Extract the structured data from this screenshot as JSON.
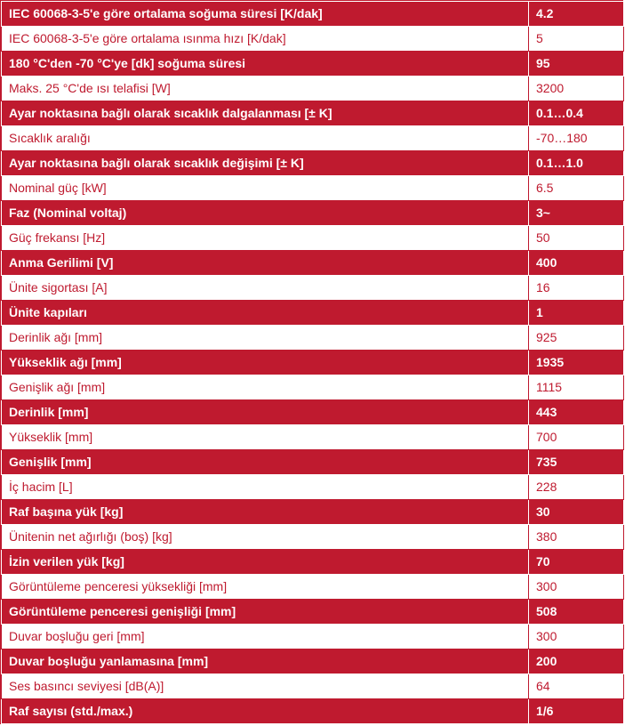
{
  "colors": {
    "accent": "#bf1a2f",
    "background": "#ffffff",
    "dark_row_text": "#ffffff",
    "light_row_text": "#bf1a2f"
  },
  "rows": [
    {
      "label": "IEC 60068-3-5'e göre ortalama soğuma süresi [K/dak]",
      "value": "4.2",
      "style": "dark"
    },
    {
      "label": "IEC 60068-3-5'e göre ortalama ısınma hızı [K/dak]",
      "value": "5",
      "style": "light"
    },
    {
      "label": "180 °C'den -70 °C'ye [dk] soğuma süresi",
      "value": "95",
      "style": "dark"
    },
    {
      "label": "Maks. 25 °C'de ısı telafisi [W]",
      "value": "3200",
      "style": "light"
    },
    {
      "label": "Ayar noktasına bağlı olarak sıcaklık dalgalanması [± K]",
      "value": "0.1…0.4",
      "style": "dark"
    },
    {
      "label": "Sıcaklık aralığı",
      "value": "-70…180",
      "style": "light"
    },
    {
      "label": "Ayar noktasına bağlı olarak sıcaklık değişimi [± K]",
      "value": "0.1…1.0",
      "style": "dark"
    },
    {
      "label": "Nominal güç [kW]",
      "value": "6.5",
      "style": "light"
    },
    {
      "label": "Faz (Nominal voltaj)",
      "value": "3~",
      "style": "dark"
    },
    {
      "label": "Güç frekansı [Hz]",
      "value": "50",
      "style": "light"
    },
    {
      "label": "Anma Gerilimi [V]",
      "value": "400",
      "style": "dark"
    },
    {
      "label": "Ünite sigortası [A]",
      "value": "16",
      "style": "light"
    },
    {
      "label": "Ünite kapıları",
      "value": "1",
      "style": "dark"
    },
    {
      "label": "Derinlik ağı [mm]",
      "value": "925",
      "style": "light"
    },
    {
      "label": "Yükseklik ağı [mm]",
      "value": "1935",
      "style": "dark"
    },
    {
      "label": "Genişlik ağı [mm]",
      "value": "1115",
      "style": "light"
    },
    {
      "label": "Derinlik [mm]",
      "value": "443",
      "style": "dark"
    },
    {
      "label": "Yükseklik [mm]",
      "value": "700",
      "style": "light"
    },
    {
      "label": "Genişlik [mm]",
      "value": "735",
      "style": "dark"
    },
    {
      "label": "İç hacim [L]",
      "value": "228",
      "style": "light"
    },
    {
      "label": "Raf başına yük [kg]",
      "value": "30",
      "style": "dark"
    },
    {
      "label": "Ünitenin net ağırlığı (boş) [kg]",
      "value": "380",
      "style": "light"
    },
    {
      "label": "İzin verilen yük [kg]",
      "value": "70",
      "style": "dark"
    },
    {
      "label": "Görüntüleme penceresi yüksekliği [mm]",
      "value": "300",
      "style": "light"
    },
    {
      "label": "Görüntüleme penceresi genişliği [mm]",
      "value": "508",
      "style": "dark"
    },
    {
      "label": "Duvar boşluğu geri [mm]",
      "value": "300",
      "style": "light"
    },
    {
      "label": "Duvar boşluğu yanlamasına [mm]",
      "value": "200",
      "style": "dark"
    },
    {
      "label": "Ses basıncı seviyesi [dB(A)]",
      "value": "64",
      "style": "light"
    },
    {
      "label": "Raf sayısı (std./max.)",
      "value": "1/6",
      "style": "dark"
    }
  ]
}
